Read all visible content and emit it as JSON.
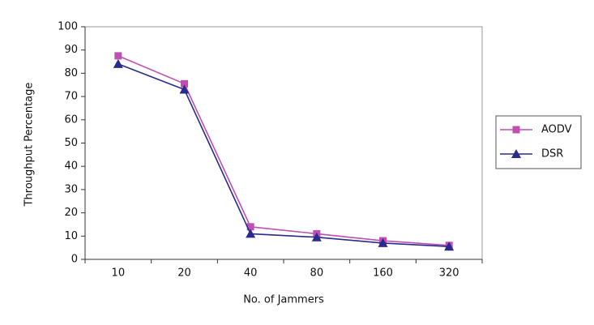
{
  "chart_data": {
    "type": "line",
    "x_label": "No. of Jammers",
    "y_label": "Throughput Percentage",
    "categories": [
      "10",
      "20",
      "40",
      "80",
      "160",
      "320"
    ],
    "series": [
      {
        "name": "AODV",
        "color": "#c04fb4",
        "marker": "square",
        "values": [
          87.5,
          75.5,
          14,
          11,
          8,
          6
        ]
      },
      {
        "name": "DSR",
        "color": "#2b2b8c",
        "marker": "triangle",
        "values": [
          84,
          73,
          11,
          9.5,
          7,
          5.5
        ]
      }
    ],
    "ylim": [
      0,
      100
    ],
    "yticks": [
      0,
      10,
      20,
      30,
      40,
      50,
      60,
      70,
      80,
      90,
      100
    ],
    "legend": "right"
  }
}
